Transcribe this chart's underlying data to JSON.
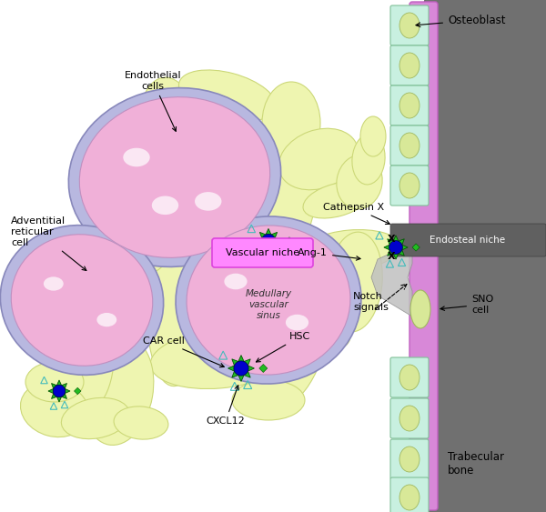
{
  "bg_color": "#ffffff",
  "stroma_fill": "#eef5b0",
  "stroma_edge": "#ccd878",
  "cell_halo_fill": "#b8b8e0",
  "cell_halo_edge": "#8888bb",
  "cell_body_fill": "#f0b0d8",
  "cell_body_edge": "#c090c0",
  "cell_highlight": "#ffffff",
  "hsc_star_fill": "#22bb22",
  "hsc_star_edge": "#005500",
  "hsc_core_fill": "#0000cc",
  "hsc_core_edge": "#000044",
  "hsc_diamond_fill": "#22bb22",
  "hsc_triangle_edge": "#44bbbb",
  "bone_pink": "#d888d8",
  "bone_gray": "#707070",
  "osteo_box_fill": "#c8f0e0",
  "osteo_box_edge": "#80c098",
  "osteo_oval_fill": "#d8e898",
  "osteo_oval_edge": "#a0b860",
  "endosteal_box_fill": "#606060",
  "endosteal_text": "#ffffff",
  "vn_box_fill": "#ff88ff",
  "vn_box_edge": "#dd44dd",
  "spindle_fill": "#c0c0c0",
  "spindle_edge": "#909090",
  "sno_fill": "#d8e898",
  "sno_edge": "#a0b860",
  "labels": {
    "endothelial": "Endothelial\ncells",
    "adventitial": "Adventitial\nreticular\ncell",
    "medullary": "Medullary\nvascular\nsinus",
    "car_cell": "CAR cell",
    "hsc": "HSC",
    "cxcl12": "CXCL12",
    "vascular_niche": "Vascular niche",
    "cathepsin": "Cathepsin X",
    "ang1": "Ang-1",
    "notch": "Notch\nsignals",
    "endosteal_niche": "Endosteal niche",
    "sno_cell": "SNO\ncell",
    "osteoblast": "Osteoblast",
    "trabecular": "Trabecular\nbone"
  },
  "figw": 6.0,
  "figh": 5.63,
  "dpi": 100
}
